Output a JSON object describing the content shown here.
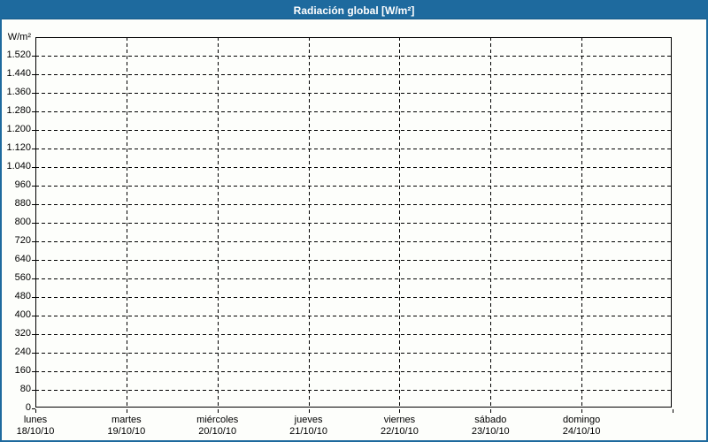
{
  "title": "Radiación global [W/m²]",
  "colors": {
    "header_bg": "#1e6a9e",
    "window_border": "#1e6a9e",
    "title_text": "#ffffff",
    "grid": "#000000",
    "axis": "#000000",
    "text": "#000000",
    "background": "#fdfefb"
  },
  "chart_data": {
    "type": "line",
    "title": "Radiación global [W/m²]",
    "xlabel": "",
    "ylabel": "W/m²",
    "ylim": [
      0,
      1600
    ],
    "ytick_step": 80,
    "ytick_labels": [
      "0",
      "80",
      "160",
      "240",
      "320",
      "400",
      "480",
      "560",
      "640",
      "720",
      "800",
      "880",
      "960",
      "1.040",
      "1.120",
      "1.200",
      "1.280",
      "1.360",
      "1.440",
      "1.520"
    ],
    "x_categories": [
      {
        "day": "lunes",
        "date": "18/10/10"
      },
      {
        "day": "martes",
        "date": "19/10/10"
      },
      {
        "day": "miércoles",
        "date": "20/10/10"
      },
      {
        "day": "jueves",
        "date": "21/10/10"
      },
      {
        "day": "viernes",
        "date": "22/10/10"
      },
      {
        "day": "sábado",
        "date": "23/10/10"
      },
      {
        "day": "domingo",
        "date": "24/10/10"
      }
    ],
    "series": [],
    "grid": "dashed",
    "legend_position": "none"
  }
}
